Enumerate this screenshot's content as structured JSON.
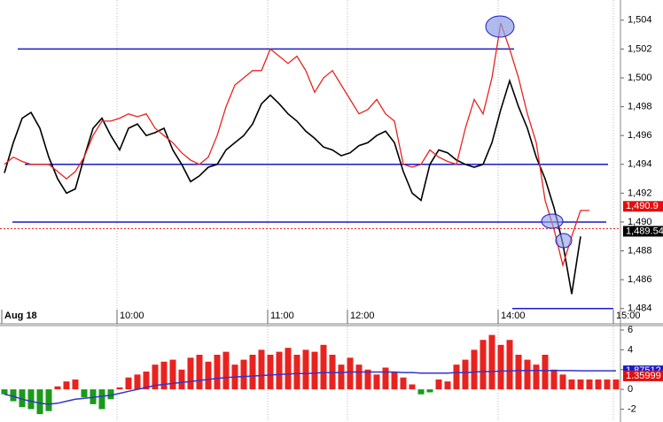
{
  "chart_data": [
    {
      "type": "line",
      "categories": [
        "Aug 18",
        null,
        null,
        null,
        null,
        null,
        null,
        null,
        null,
        null,
        null,
        null,
        null,
        "10:00",
        null,
        null,
        null,
        null,
        null,
        null,
        null,
        null,
        null,
        null,
        null,
        null,
        null,
        null,
        null,
        null,
        "11:00",
        null,
        null,
        null,
        null,
        null,
        null,
        null,
        null,
        "12:00",
        null,
        null,
        null,
        null,
        null,
        null,
        null,
        null,
        null,
        null,
        null,
        null,
        null,
        null,
        null,
        null,
        "14:00",
        null,
        null,
        null,
        null,
        null,
        null,
        null,
        null,
        null,
        null,
        null,
        null,
        "15:00"
      ],
      "series": [
        {
          "color": "#000000",
          "values": [
            1493.4,
            1495.5,
            1497.2,
            1497.6,
            1496.5,
            1494.5,
            1493.0,
            1492.0,
            1492.3,
            1494.5,
            1496.5,
            1497.2,
            1496.0,
            1495.0,
            1496.5,
            1496.8,
            1496.0,
            1496.2,
            1496.5,
            1495.0,
            1494.0,
            1492.8,
            1493.2,
            1493.8,
            1494.0,
            1495.0,
            1495.5,
            1496.0,
            1496.8,
            1498.2,
            1498.8,
            1498.2,
            1497.5,
            1497.0,
            1496.3,
            1495.8,
            1495.2,
            1495.0,
            1494.6,
            1494.8,
            1495.3,
            1495.5,
            1496.0,
            1496.3,
            1495.5,
            1493.5,
            1492.0,
            1491.5,
            1494.0,
            1495.0,
            1494.8,
            1494.3,
            1494.0,
            1493.8,
            1494.0,
            1495.5,
            1497.8,
            1499.8,
            1498.0,
            1496.5,
            1494.5,
            1493.0,
            1491.0,
            1488.5,
            1485.0,
            1489.0,
            null,
            null,
            null,
            null
          ]
        },
        {
          "color": "#e8231f",
          "values": [
            1494.0,
            1494.5,
            1494.2,
            1494.0,
            1494.0,
            1494.0,
            1493.5,
            1493.0,
            1493.5,
            1494.5,
            1496.0,
            1497.0,
            1497.0,
            1497.2,
            1497.5,
            1497.3,
            1497.5,
            1496.5,
            1496.0,
            1495.5,
            1494.8,
            1494.3,
            1494.0,
            1494.5,
            1496.0,
            1498.0,
            1499.5,
            1500.0,
            1500.5,
            1500.5,
            1502.0,
            1501.5,
            1501.0,
            1501.5,
            1500.5,
            1499.0,
            1500.0,
            1500.5,
            1499.5,
            1498.5,
            1497.5,
            1497.8,
            1498.5,
            1497.5,
            1497.0,
            1494.0,
            1493.8,
            1494.0,
            1495.0,
            1494.5,
            1494.2,
            1494.0,
            1496.5,
            1498.5,
            1497.5,
            1500.0,
            1503.8,
            1502.0,
            1500.0,
            1497.5,
            1495.5,
            1491.5,
            1489.5,
            1487.0,
            1489.0,
            1490.8,
            1490.8,
            null,
            null,
            null
          ]
        }
      ],
      "hlines": {
        "values": [
          1502,
          1494,
          1490,
          1484
        ],
        "color": "#1a1ac8"
      },
      "price_labels": [
        {
          "value": 1490.9,
          "label": "1,490.9",
          "color": "#e01010"
        },
        {
          "value": 1489.54,
          "label": "1,489.54",
          "color": "#000000"
        }
      ],
      "ylim": [
        1483,
        1505.4
      ],
      "yticks": [
        {
          "value": 1484,
          "label": "1,484"
        },
        {
          "value": 1486,
          "label": "1,486"
        },
        {
          "value": 1488,
          "label": "1,488"
        },
        {
          "value": 1490,
          "label": "1,490"
        },
        {
          "value": 1492,
          "label": "1,492"
        },
        {
          "value": 1494,
          "label": "1,494"
        },
        {
          "value": 1496,
          "label": "1,496"
        },
        {
          "value": 1498,
          "label": "1,498"
        },
        {
          "value": 1500,
          "label": "1,500"
        },
        {
          "value": 1502,
          "label": "1,502"
        },
        {
          "value": 1504,
          "label": "1,504"
        }
      ]
    },
    {
      "type": "bar",
      "values": [
        -0.5,
        -1.2,
        -1.8,
        -2,
        -2.5,
        -2.2,
        0.3,
        0.8,
        1.0,
        -0.8,
        -1.5,
        -2.0,
        -1.0,
        0.2,
        1.2,
        1.5,
        1.8,
        2.5,
        2.8,
        3.0,
        2.0,
        3.2,
        3.5,
        2.8,
        3.5,
        3.8,
        2.5,
        3.0,
        3.5,
        4.0,
        3.5,
        3.8,
        4.2,
        3.5,
        4.0,
        3.8,
        4.5,
        3.5,
        2.5,
        3.2,
        2.5,
        2.0,
        1.5,
        2.2,
        1.8,
        1.2,
        0.5,
        -0.5,
        -0.3,
        1.0,
        0.8,
        2.5,
        3.0,
        4.0,
        5.0,
        5.5,
        4.5,
        5.0,
        3.5,
        3.0,
        2.5,
        3.5,
        2.0,
        1.5,
        1.0,
        1.0,
        1.0,
        1.0,
        1.0,
        1.0
      ],
      "positive_color": "#e8231f",
      "negative_color": "#1a9a1a",
      "line": {
        "color": "#3333cc",
        "values": [
          -0.5,
          -0.7,
          -1.0,
          -1.2,
          -1.4,
          -1.5,
          -1.4,
          -1.2,
          -1.0,
          -0.9,
          -0.8,
          -0.7,
          -0.6,
          -0.4,
          -0.2,
          0.0,
          0.2,
          0.4,
          0.5,
          0.6,
          0.7,
          0.8,
          0.9,
          1.0,
          1.1,
          1.2,
          1.25,
          1.3,
          1.35,
          1.4,
          1.45,
          1.5,
          1.55,
          1.6,
          1.6,
          1.65,
          1.7,
          1.7,
          1.7,
          1.75,
          1.75,
          1.75,
          1.75,
          1.75,
          1.75,
          1.7,
          1.7,
          1.65,
          1.65,
          1.65,
          1.65,
          1.7,
          1.7,
          1.75,
          1.8,
          1.8,
          1.85,
          1.85,
          1.9,
          1.9,
          1.9,
          1.9,
          1.9,
          1.9,
          1.9,
          1.88,
          1.88,
          1.88,
          1.88,
          1.88
        ]
      },
      "last_labels": [
        {
          "value": 1.87512,
          "color": "#1a1ac8"
        },
        {
          "value": 1.35999,
          "color": "#e01010"
        }
      ],
      "ylim": [
        -3.3,
        6.45
      ],
      "yticks": [
        6,
        4,
        2,
        0,
        -2
      ]
    }
  ]
}
